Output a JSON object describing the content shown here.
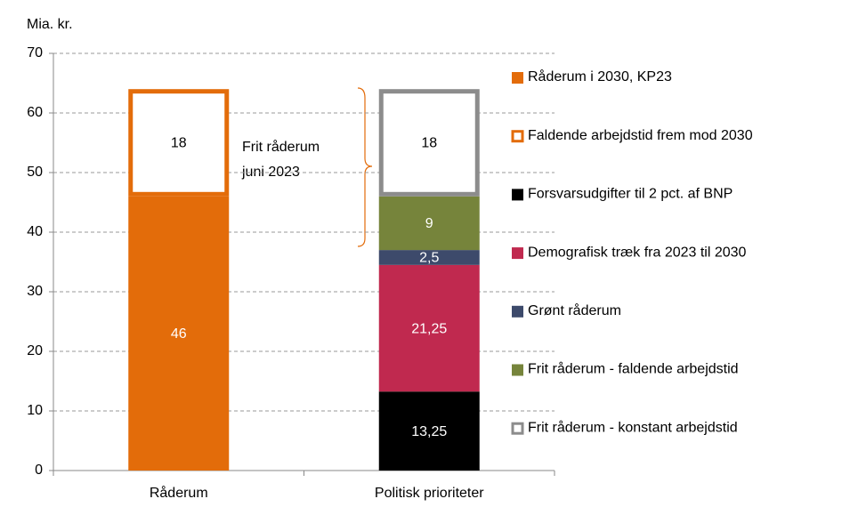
{
  "chart_data": {
    "type": "stacked_bar",
    "ylabel": "Mia. kr.",
    "categories": [
      "Råderum",
      "Politisk prioriteter"
    ],
    "series": [
      {
        "name": "Råderum i 2030, KP23",
        "color": "#e36c0a",
        "style": "fill",
        "values": [
          46,
          null
        ],
        "value_labels": [
          "46",
          null
        ]
      },
      {
        "name": "Faldende arbejdstid frem mod 2030",
        "color": "#e36c0a",
        "style": "outline",
        "values": [
          18,
          null
        ],
        "value_labels": [
          "18",
          null
        ]
      },
      {
        "name": "Forsvarsudgifter til 2 pct. af BNP",
        "color": "#000000",
        "style": "fill",
        "values": [
          null,
          13.25
        ],
        "value_labels": [
          null,
          "13,25"
        ]
      },
      {
        "name": "Demografisk træk fra 2023 til 2030",
        "color": "#c0294f",
        "style": "fill",
        "values": [
          null,
          21.25
        ],
        "value_labels": [
          null,
          "21,25"
        ]
      },
      {
        "name": "Grønt råderum",
        "color": "#3d4a6b",
        "style": "fill",
        "values": [
          null,
          2.5
        ],
        "value_labels": [
          null,
          "2,5"
        ]
      },
      {
        "name": "Frit råderum - faldende arbejdstid",
        "color": "#76843b",
        "style": "fill",
        "values": [
          null,
          9
        ],
        "value_labels": [
          null,
          "9"
        ]
      },
      {
        "name": "Frit råderum - konstant arbejdstid",
        "color": "#8c8c8c",
        "style": "outline",
        "values": [
          null,
          18
        ],
        "value_labels": [
          null,
          "18"
        ]
      }
    ],
    "annotation": [
      "Frit råderum",
      "juni 2023"
    ],
    "ylim": [
      0,
      70
    ],
    "yticks": [
      0,
      10,
      20,
      30,
      40,
      50,
      60,
      70
    ],
    "grid": true,
    "legend": "right"
  }
}
